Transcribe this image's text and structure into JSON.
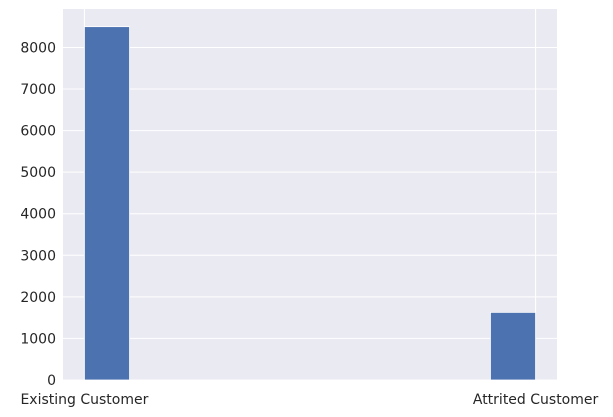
{
  "chart_data": {
    "type": "bar",
    "title": "",
    "xlabel": "",
    "ylabel": "",
    "categories": [
      "Existing Customer",
      "Attrited Customer"
    ],
    "values": [
      8500,
      1627
    ],
    "ylim": [
      0,
      8925
    ],
    "yticks": [
      0,
      1000,
      2000,
      3000,
      4000,
      5000,
      6000,
      7000,
      8000
    ],
    "grid": true,
    "legend": "none",
    "colors": {
      "bar": "#4c72b0",
      "plot_background": "#eaeaf2",
      "grid": "#ffffff"
    }
  }
}
